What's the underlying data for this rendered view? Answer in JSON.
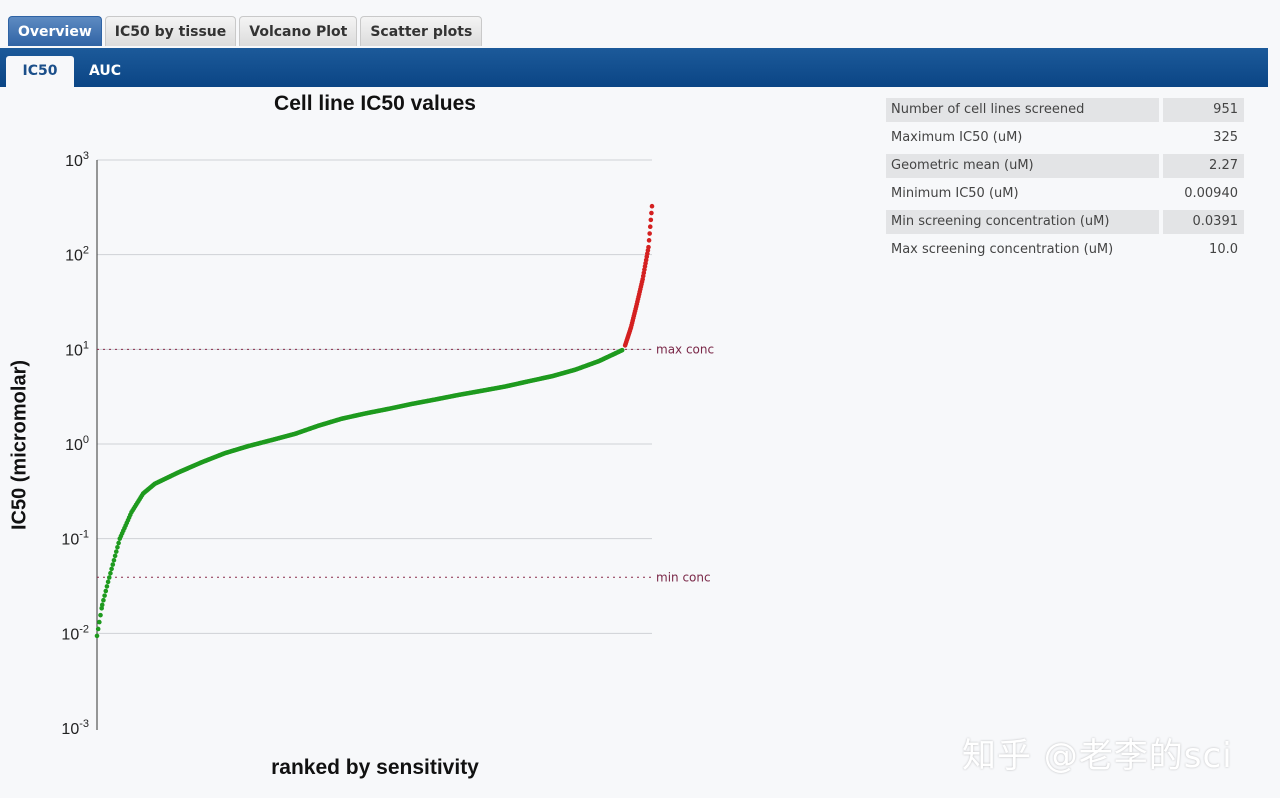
{
  "tabs": [
    {
      "label": "Overview",
      "active": true
    },
    {
      "label": "IC50 by tissue",
      "active": false
    },
    {
      "label": "Volcano Plot",
      "active": false
    },
    {
      "label": "Scatter plots",
      "active": false
    }
  ],
  "subtabs": [
    {
      "label": "IC50",
      "active": true
    },
    {
      "label": "AUC",
      "active": false
    }
  ],
  "stats": [
    {
      "label": "Number of cell lines screened",
      "value": "951",
      "shaded": true
    },
    {
      "label": "Maximum IC50 (uM)",
      "value": "325",
      "shaded": false
    },
    {
      "label": "Geometric mean (uM)",
      "value": "2.27",
      "shaded": true
    },
    {
      "label": "Minimum IC50 (uM)",
      "value": "0.00940",
      "shaded": false
    },
    {
      "label": "Min screening concentration (uM)",
      "value": "0.0391",
      "shaded": true
    },
    {
      "label": "Max screening concentration (uM)",
      "value": "10.0",
      "shaded": false
    }
  ],
  "chart_data": {
    "type": "scatter",
    "title": "Cell line IC50 values",
    "xlabel": "ranked by sensitivity",
    "ylabel": "IC50 (micromolar)",
    "y_scale": "log",
    "ylim": [
      0.001,
      1000
    ],
    "yticks": [
      {
        "base": "10",
        "exp": "-3",
        "value": 0.001
      },
      {
        "base": "10",
        "exp": "-2",
        "value": 0.01
      },
      {
        "base": "10",
        "exp": "-1",
        "value": 0.1
      },
      {
        "base": "10",
        "exp": "0",
        "value": 1
      },
      {
        "base": "10",
        "exp": "1",
        "value": 10
      },
      {
        "base": "10",
        "exp": "2",
        "value": 100
      },
      {
        "base": "10",
        "exp": "3",
        "value": 1000
      }
    ],
    "grid": true,
    "reference_lines": [
      {
        "label": "max conc",
        "value": 10.0
      },
      {
        "label": "min conc",
        "value": 0.0391
      }
    ],
    "series": [
      {
        "color": "#1e9a1e",
        "x": [
          1,
          10,
          20,
          40,
          60,
          80,
          100,
          140,
          180,
          220,
          260,
          300,
          340,
          380,
          420,
          460,
          500,
          540,
          580,
          620,
          660,
          700,
          740,
          780,
          820,
          860,
          900
        ],
        "y": [
          0.0094,
          0.02,
          0.035,
          0.1,
          0.19,
          0.3,
          0.38,
          0.5,
          0.64,
          0.8,
          0.95,
          1.1,
          1.28,
          1.56,
          1.85,
          2.1,
          2.35,
          2.65,
          2.95,
          3.3,
          3.65,
          4.05,
          4.6,
          5.2,
          6.1,
          7.5,
          9.8
        ]
      },
      {
        "color": "#d42020",
        "x": [
          905,
          915,
          925,
          935,
          945,
          951
        ],
        "y": [
          11,
          17,
          30,
          55,
          120,
          325
        ]
      }
    ]
  },
  "watermark": "知乎 @老李的sci"
}
